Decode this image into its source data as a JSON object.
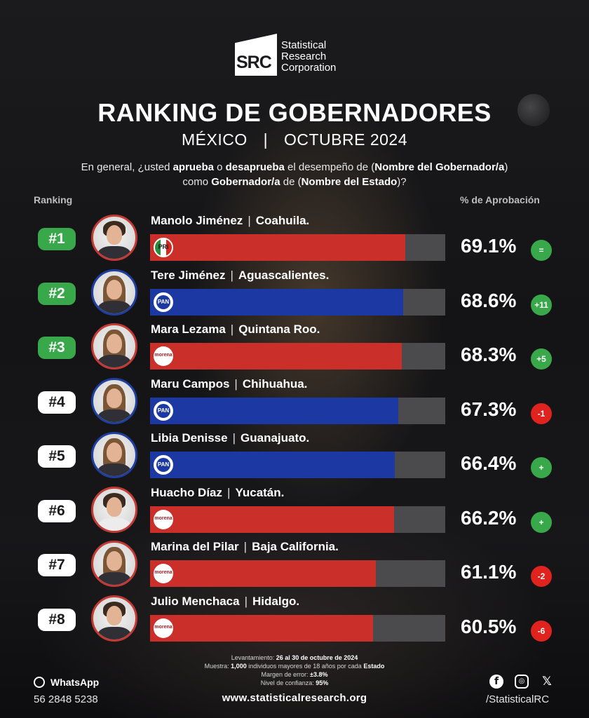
{
  "brand": {
    "logo_mark": "SRC",
    "line1": "Statistical",
    "line2": "Research",
    "line3": "Corporation"
  },
  "header": {
    "title": "RANKING DE GOBERNADORES",
    "country": "MÉXICO",
    "separator": "|",
    "period": "OCTUBRE 2024",
    "question": {
      "t1": "En general, ¿usted ",
      "b1": "aprueba",
      "t2": " o ",
      "b2": "desaprueba",
      "t3": " el desempeño de (",
      "b3": "Nombre del Gobernador/a",
      "t4": ") como ",
      "b4": "Gobernador/a",
      "t5": " de (",
      "b5": "Nombre del Estado",
      "t6": ")?"
    }
  },
  "columns": {
    "ranking": "Ranking",
    "approval": "% de Aprobación"
  },
  "colors": {
    "pri": "#ca2f2a",
    "morena": "#ca2f2a",
    "pan": "#1c39a3",
    "track": "#4b4b4e",
    "up": "#39a84a",
    "down": "#e0231f"
  },
  "chart_data": {
    "type": "bar",
    "orientation": "horizontal",
    "title": "RANKING DE GOBERNADORES",
    "categories": [
      "Manolo Jiménez",
      "Tere Jiménez",
      "Mara Lezama",
      "Maru Campos",
      "Libia Denisse",
      "Huacho Díaz",
      "Marina del Pilar",
      "Julio Menchaca"
    ],
    "values": [
      69.1,
      68.6,
      68.3,
      67.3,
      66.4,
      66.2,
      61.1,
      60.5
    ],
    "xlim": [
      0,
      80
    ],
    "rows": [
      {
        "rank": "#1",
        "name": "Manolo Jiménez",
        "state": "Coahuila.",
        "party": "PRI",
        "party_label": "PRI",
        "value": 69.1,
        "value_label": "69.1%",
        "change": "=",
        "trend": "up",
        "top": true
      },
      {
        "rank": "#2",
        "name": "Tere Jiménez",
        "state": "Aguascalientes.",
        "party": "PAN",
        "party_label": "PAN",
        "value": 68.6,
        "value_label": "68.6%",
        "change": "+11",
        "trend": "up",
        "top": true
      },
      {
        "rank": "#3",
        "name": "Mara Lezama",
        "state": "Quintana Roo.",
        "party": "MORENA",
        "party_label": "morena",
        "value": 68.3,
        "value_label": "68.3%",
        "change": "+5",
        "trend": "up",
        "top": true
      },
      {
        "rank": "#4",
        "name": "Maru Campos",
        "state": "Chihuahua.",
        "party": "PAN",
        "party_label": "PAN",
        "value": 67.3,
        "value_label": "67.3%",
        "change": "-1",
        "trend": "down",
        "top": false
      },
      {
        "rank": "#5",
        "name": "Libia Denisse",
        "state": "Guanajuato.",
        "party": "PAN",
        "party_label": "PAN",
        "value": 66.4,
        "value_label": "66.4%",
        "change": "+",
        "trend": "up",
        "top": false
      },
      {
        "rank": "#6",
        "name": "Huacho Díaz",
        "state": "Yucatán.",
        "party": "MORENA",
        "party_label": "morena",
        "value": 66.2,
        "value_label": "66.2%",
        "change": "+",
        "trend": "up",
        "top": false
      },
      {
        "rank": "#7",
        "name": "Marina del Pilar",
        "state": "Baja California.",
        "party": "MORENA",
        "party_label": "morena",
        "value": 61.1,
        "value_label": "61.1%",
        "change": "-2",
        "trend": "down",
        "top": false
      },
      {
        "rank": "#8",
        "name": "Julio Menchaca",
        "state": "Hidalgo.",
        "party": "MORENA",
        "party_label": "morena",
        "value": 60.5,
        "value_label": "60.5%",
        "change": "-6",
        "trend": "down",
        "top": false
      }
    ]
  },
  "methodology": {
    "l1_text": "Levantamiento: ",
    "l1_bold": "26 al 30 de octubre de 2024",
    "l2_text": "Muestra: ",
    "l2_bold1": "1,000",
    "l2_mid": " individuos mayores de 18 años por cada ",
    "l2_bold2": "Estado",
    "l3_text": "Margen de error: ",
    "l3_bold": "±3.8%",
    "l4_text": "Nivel de confianza: ",
    "l4_bold": "95%"
  },
  "footer": {
    "whatsapp_label": "WhatsApp",
    "whatsapp_icon": "whatsapp-icon",
    "phone": "56 2848 5238",
    "website": "www.statisticalresearch.org",
    "handle": "/StatisticalRC",
    "fb_glyph": "f",
    "ig_glyph": "◎",
    "x_glyph": "𝕏"
  }
}
